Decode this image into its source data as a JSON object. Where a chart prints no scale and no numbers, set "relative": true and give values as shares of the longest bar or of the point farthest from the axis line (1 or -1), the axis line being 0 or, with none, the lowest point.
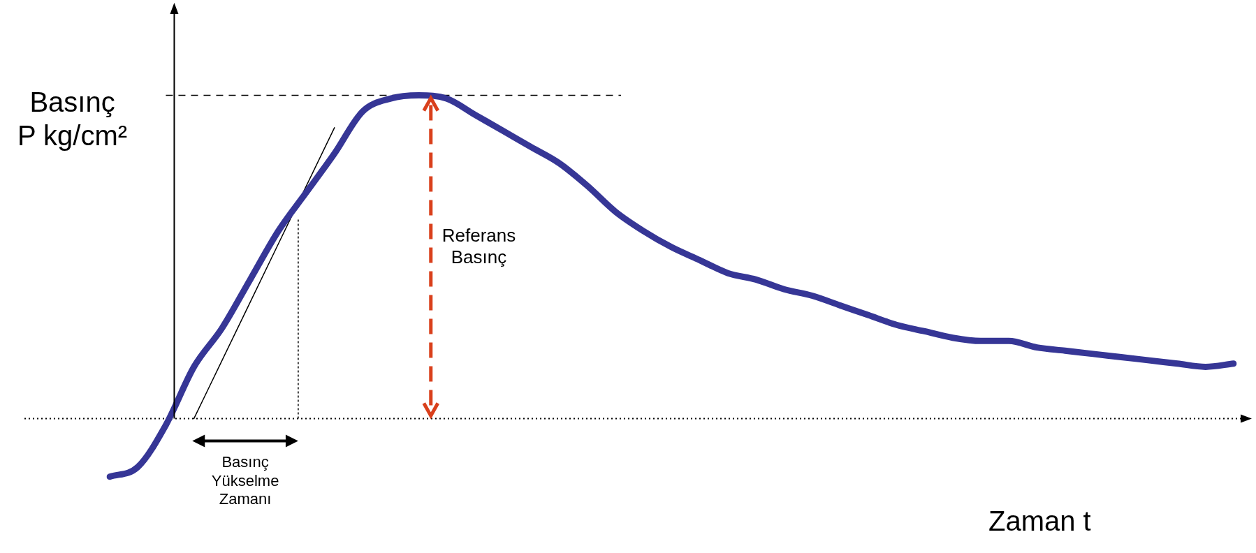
{
  "chart_data": {
    "type": "line",
    "relative": true,
    "xlabel": "Zaman t",
    "ylabel": "Basınç\nP kg/cm²",
    "legend": false,
    "marker": "none",
    "categories": [
      null,
      null,
      null,
      null,
      null,
      null,
      null,
      null,
      null,
      null,
      null,
      null,
      null,
      null,
      null,
      null,
      null,
      null,
      null,
      null,
      null,
      null,
      null,
      null,
      null,
      null,
      null,
      null,
      null,
      null,
      null,
      null,
      null,
      null,
      null,
      null,
      null,
      null,
      null,
      null,
      null
    ],
    "series": [
      {
        "color": "#363696",
        "values": [
          -0.18,
          -0.15,
          -0.02,
          0.16,
          0.28,
          0.43,
          0.58,
          0.7,
          0.82,
          0.95,
          0.99,
          1.0,
          0.99,
          0.94,
          0.89,
          0.84,
          0.79,
          0.72,
          0.64,
          0.58,
          0.53,
          0.49,
          0.45,
          0.43,
          0.4,
          0.38,
          0.35,
          0.32,
          0.29,
          0.27,
          0.25,
          0.24,
          0.24,
          0.22,
          0.21,
          0.2,
          0.19,
          0.18,
          0.17,
          0.16,
          0.17
        ]
      },
      {
        "color": "#000000",
        "values": [
          null,
          null,
          null,
          0,
          0.18,
          0.36,
          0.54,
          0.72,
          0.9,
          null,
          null,
          null,
          null,
          null,
          null,
          null,
          null,
          null,
          null,
          null,
          null,
          null,
          null,
          null,
          null,
          null,
          null,
          null,
          null,
          null,
          null,
          null,
          null,
          null,
          null,
          null,
          null,
          null,
          null,
          null,
          null
        ]
      }
    ],
    "ref_lines": [
      {
        "axis": "y",
        "value": 0,
        "color": "#000000",
        "line_style": "dotted"
      },
      {
        "axis": "y",
        "value": 1.0,
        "color": "#000000",
        "line_style": "dashed"
      }
    ],
    "annotations": [
      "Referans Basınç",
      "Basınç Yükselme Zamanı"
    ]
  }
}
